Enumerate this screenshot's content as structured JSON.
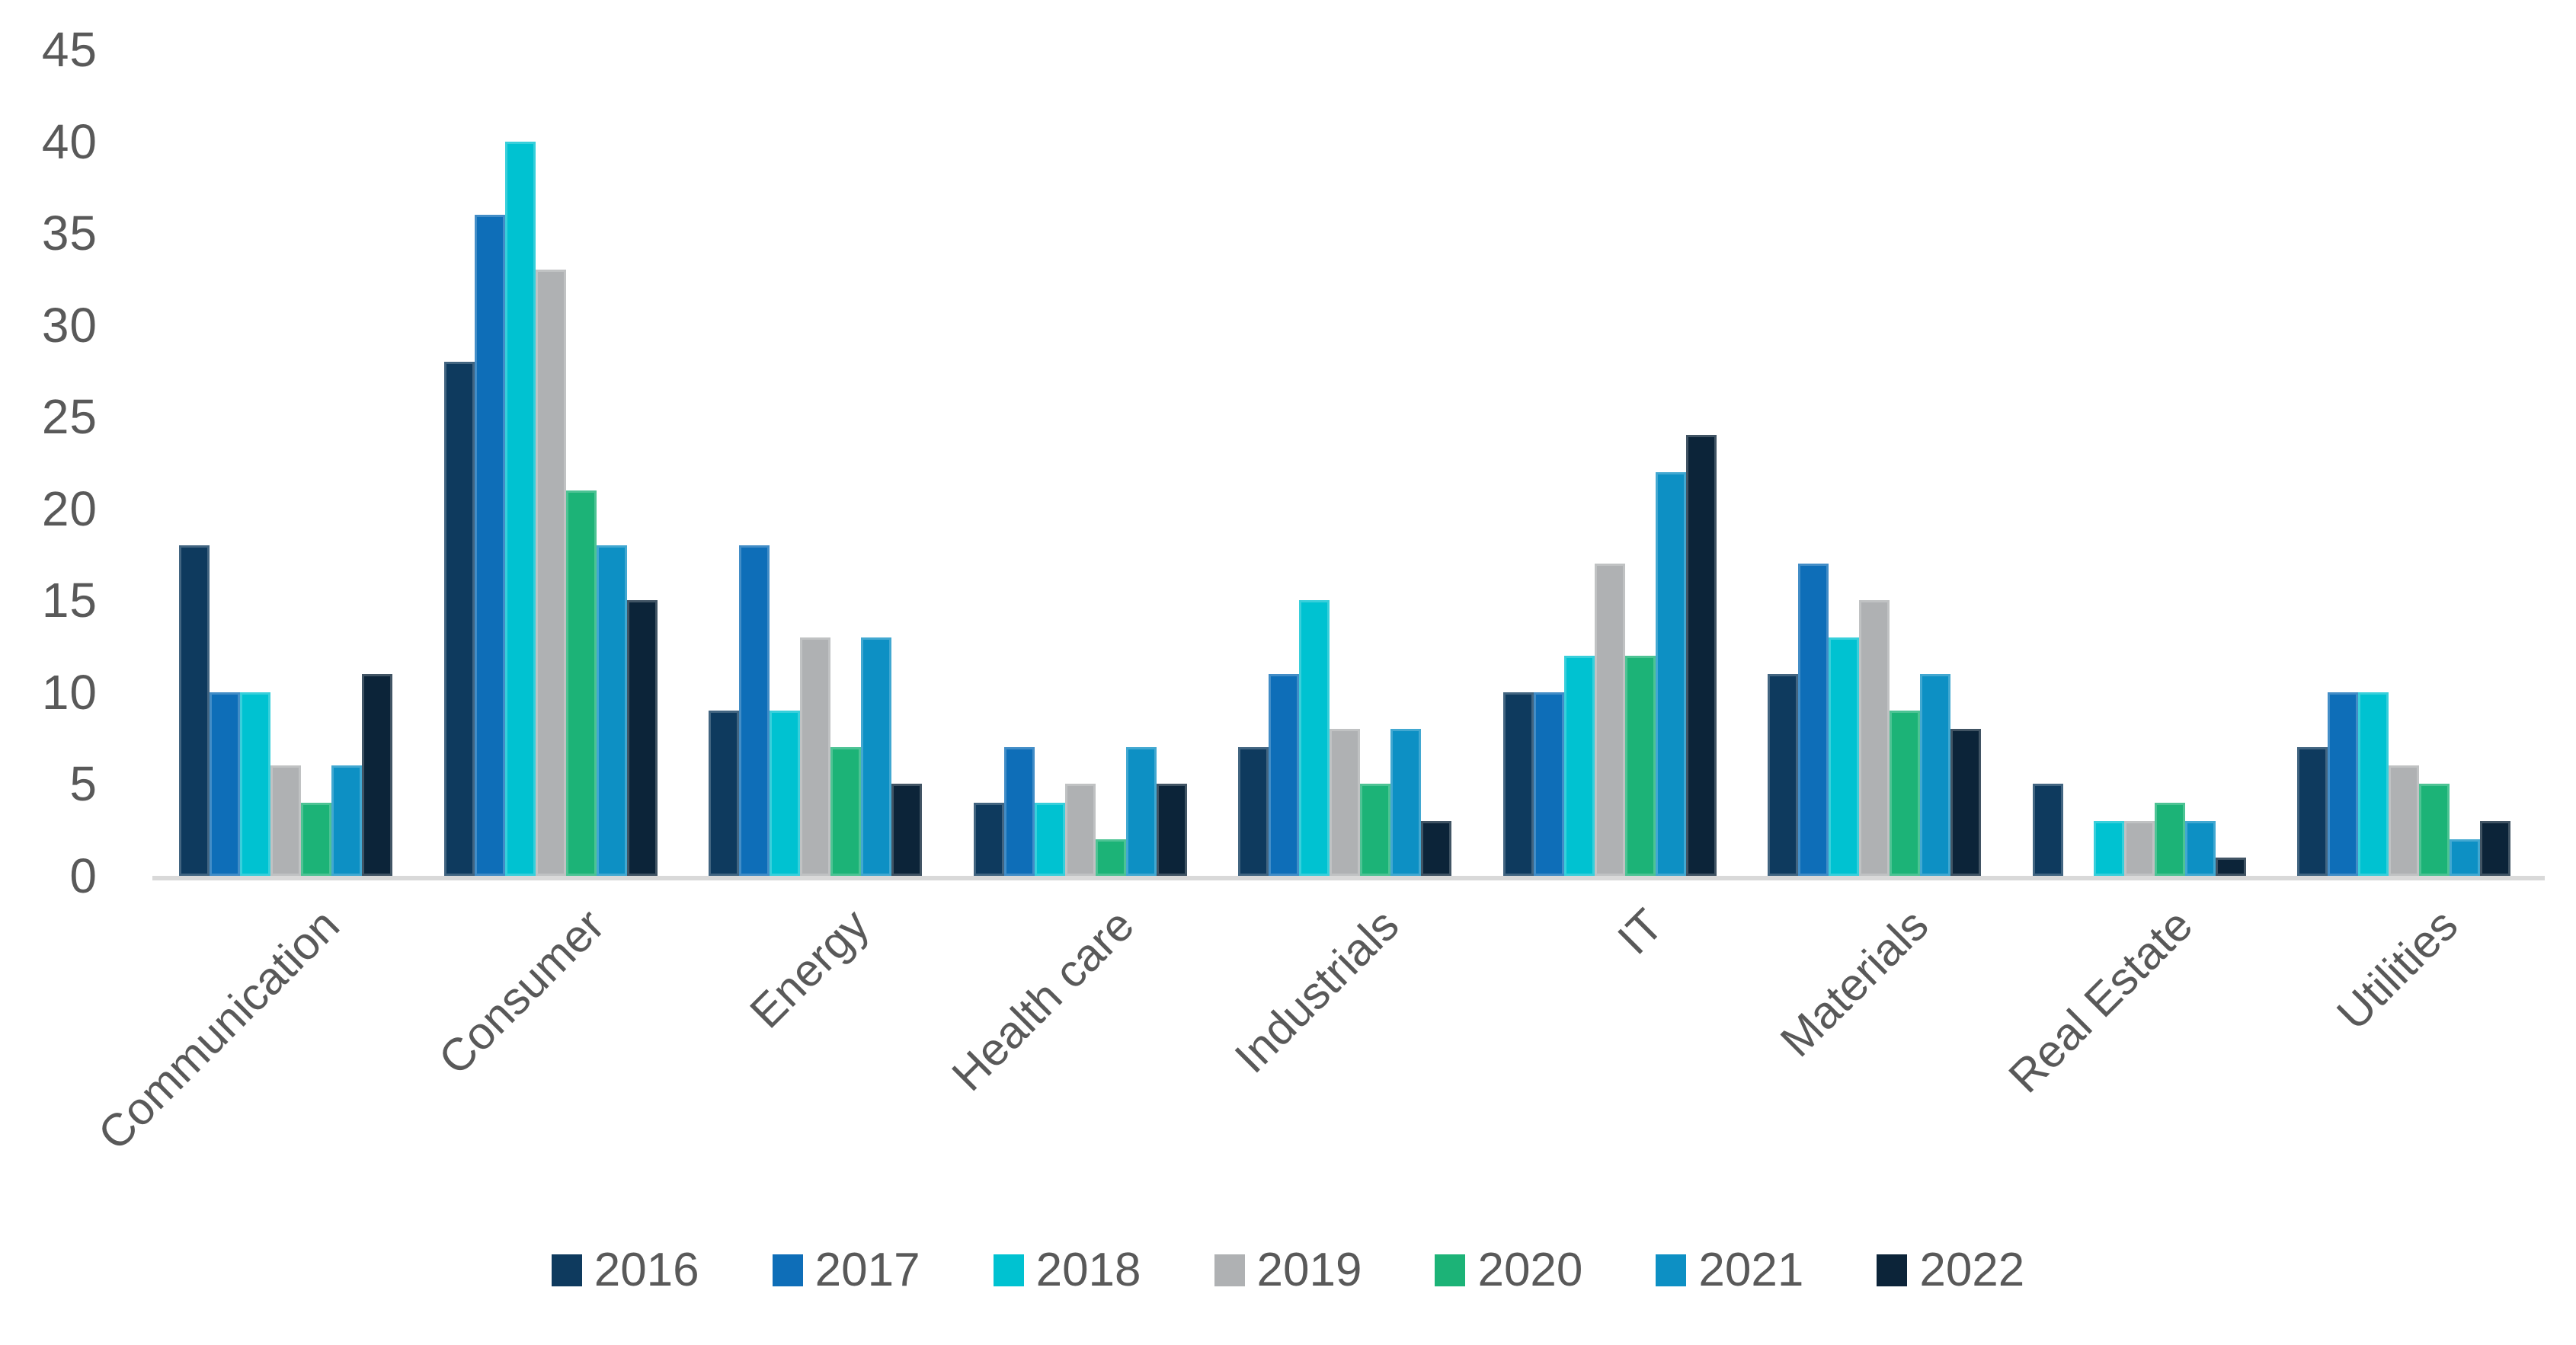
{
  "chart_data": {
    "type": "bar",
    "title": "",
    "xlabel": "",
    "ylabel": "",
    "categories": [
      "Communication",
      "Consumer",
      "Energy",
      "Health care",
      "Industrials",
      "IT",
      "Materials",
      "Real Estate",
      "Utilities"
    ],
    "series": [
      {
        "name": "2016",
        "color": "#0E3A5E",
        "values": [
          18,
          28,
          9,
          4,
          7,
          10,
          11,
          5,
          7
        ]
      },
      {
        "name": "2017",
        "color": "#0E6EB8",
        "values": [
          10,
          36,
          18,
          7,
          11,
          10,
          17,
          0,
          10
        ]
      },
      {
        "name": "2018",
        "color": "#00C2D1",
        "values": [
          10,
          40,
          9,
          4,
          15,
          12,
          13,
          3,
          10
        ]
      },
      {
        "name": "2019",
        "color": "#AFB1B3",
        "values": [
          6,
          33,
          13,
          5,
          8,
          17,
          15,
          3,
          6
        ]
      },
      {
        "name": "2020",
        "color": "#1CB377",
        "values": [
          4,
          21,
          7,
          2,
          5,
          12,
          9,
          4,
          5
        ]
      },
      {
        "name": "2021",
        "color": "#0D90C4",
        "values": [
          6,
          18,
          13,
          7,
          8,
          22,
          11,
          3,
          2
        ]
      },
      {
        "name": "2022",
        "color": "#0C2439",
        "values": [
          11,
          15,
          5,
          5,
          3,
          24,
          8,
          1,
          3
        ]
      }
    ],
    "ylim": [
      0,
      45
    ],
    "yticks": [
      0,
      5,
      10,
      15,
      20,
      25,
      30,
      35,
      40,
      45
    ],
    "grid": false,
    "legend_position": "bottom",
    "axis_text_color": "#595959",
    "axis_line_color": "#D9D9D9",
    "background_color": "#FFFFFF"
  }
}
